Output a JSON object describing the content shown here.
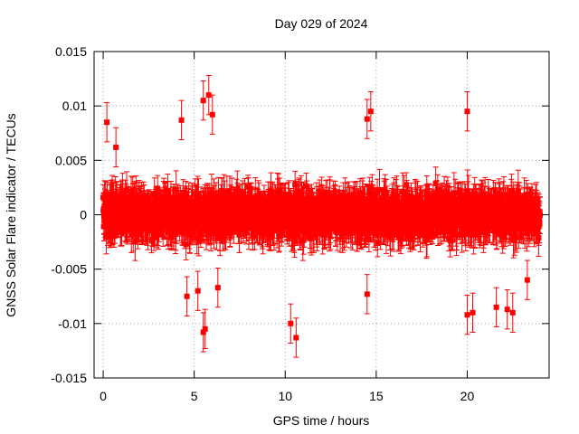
{
  "chart_data": {
    "type": "scatter",
    "title": "Day 029 of 2024",
    "xlabel": "GPS time / hours",
    "ylabel": "GNSS Solar Flare indicator / TECUs",
    "xlim": [
      -0.5,
      24.5
    ],
    "ylim": [
      -0.015,
      0.015
    ],
    "x_ticks": [
      0,
      5,
      10,
      15,
      20
    ],
    "x_tick_labels": [
      "0",
      "5",
      "10",
      "15",
      "20"
    ],
    "y_ticks": [
      -0.015,
      -0.01,
      -0.005,
      0,
      0.005,
      0.01,
      0.015
    ],
    "y_tick_labels": [
      "-0.015",
      "-0.01",
      "-0.005",
      "0",
      "0.005",
      "0.01",
      "0.015"
    ],
    "grid": true,
    "series": [
      {
        "color": "#ff0000",
        "marker": "square",
        "error_bars": true,
        "x_range": [
          0,
          24
        ],
        "typical_spread": [
          -0.005,
          0.005
        ],
        "typical_error": 0.0015,
        "notable_points": [
          {
            "x": 0.2,
            "y": 0.0085
          },
          {
            "x": 0.7,
            "y": 0.0062
          },
          {
            "x": 4.3,
            "y": 0.0087
          },
          {
            "x": 4.6,
            "y": -0.0075
          },
          {
            "x": 5.2,
            "y": -0.007
          },
          {
            "x": 5.5,
            "y": 0.0105
          },
          {
            "x": 5.5,
            "y": -0.0108
          },
          {
            "x": 5.6,
            "y": -0.0105
          },
          {
            "x": 5.8,
            "y": 0.011
          },
          {
            "x": 6.0,
            "y": 0.0092
          },
          {
            "x": 6.3,
            "y": -0.0067
          },
          {
            "x": 10.3,
            "y": -0.01
          },
          {
            "x": 10.6,
            "y": -0.0113
          },
          {
            "x": 14.5,
            "y": 0.0088
          },
          {
            "x": 14.7,
            "y": 0.0095
          },
          {
            "x": 14.5,
            "y": -0.0073
          },
          {
            "x": 20.0,
            "y": 0.0095
          },
          {
            "x": 20.0,
            "y": -0.0092
          },
          {
            "x": 20.3,
            "y": -0.009
          },
          {
            "x": 21.6,
            "y": -0.0085
          },
          {
            "x": 22.2,
            "y": -0.0087
          },
          {
            "x": 22.5,
            "y": -0.009
          },
          {
            "x": 23.3,
            "y": -0.006
          }
        ]
      }
    ]
  }
}
